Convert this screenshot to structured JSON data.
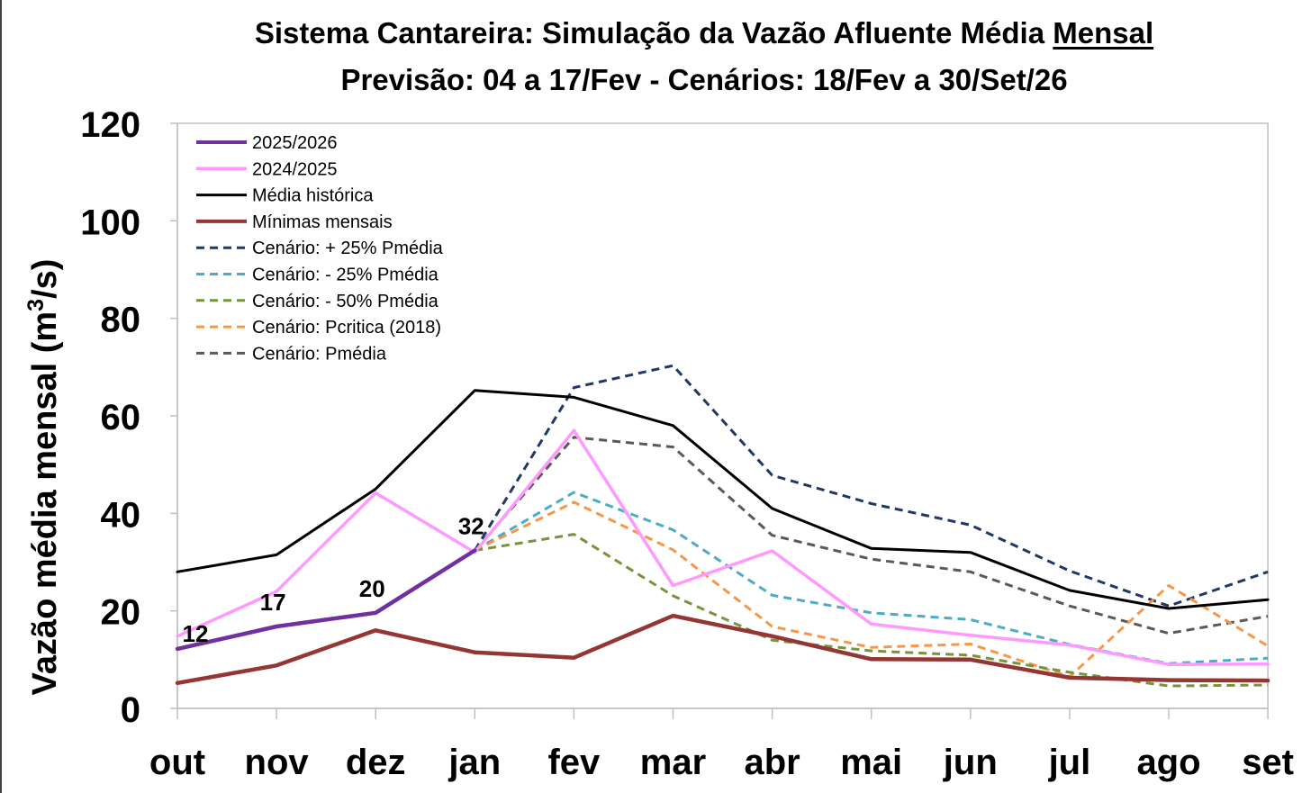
{
  "chart_data": {
    "type": "line",
    "title_main": "Sistema Cantareira: Simulação da Vazão Afluente Média",
    "title_emphasis": "Mensal",
    "subtitle": "Previsão: 04 a 17/Fev - Cenários: 18/Fev a 30/Set/26",
    "ylabel": "Vazão média mensal (m3/s)",
    "ylabel_base": "Vazão média mensal (m",
    "ylabel_sup": "3",
    "ylabel_end": "/s)",
    "categories": [
      "out",
      "nov",
      "dez",
      "jan",
      "fev",
      "mar",
      "abr",
      "mai",
      "jun",
      "jul",
      "ago",
      "set"
    ],
    "ylim": [
      0,
      120
    ],
    "yticks": [
      "0",
      "20",
      "40",
      "60",
      "80",
      "100",
      "120"
    ],
    "grid": false,
    "legend_position": "top-left",
    "series": [
      {
        "name": "2025/2026",
        "color": "#7030a0",
        "dash": "solid",
        "width": 4.5,
        "values": [
          12.2,
          16.8,
          19.6,
          32.4,
          null,
          null,
          null,
          null,
          null,
          null,
          null,
          null
        ]
      },
      {
        "name": "2024/2025",
        "color": "#ff99ff",
        "dash": "solid",
        "width": 3.5,
        "values": [
          14.8,
          24.0,
          44.2,
          32.0,
          57.0,
          25.2,
          32.3,
          17.3,
          15.0,
          13.0,
          9.0,
          9.1
        ]
      },
      {
        "name": "Média histórica",
        "color": "#000000",
        "dash": "solid",
        "width": 3,
        "values": [
          28.0,
          31.5,
          45.0,
          65.2,
          63.8,
          58.0,
          41.0,
          32.8,
          32.0,
          24.2,
          20.5,
          22.3
        ]
      },
      {
        "name": "Mínimas mensais",
        "color": "#943634",
        "dash": "solid",
        "width": 4.5,
        "values": [
          5.2,
          8.8,
          16.0,
          11.5,
          10.4,
          19.0,
          14.8,
          10.1,
          10.0,
          6.3,
          5.8,
          5.7
        ]
      },
      {
        "name": "Cenário: + 25% Pmédia",
        "color": "#1f3864",
        "dash": "dashed",
        "width": 3,
        "values": [
          null,
          null,
          null,
          32.4,
          65.8,
          70.3,
          47.8,
          42.0,
          37.6,
          28.2,
          21.0,
          28.0
        ]
      },
      {
        "name": "Cenário: - 25% Pmédia",
        "color": "#4bacc6",
        "dash": "dashed",
        "width": 3,
        "values": [
          null,
          null,
          null,
          32.4,
          44.3,
          36.6,
          23.2,
          19.6,
          18.2,
          13.1,
          9.2,
          10.3
        ]
      },
      {
        "name": "Cenário: - 50% Pmédia",
        "color": "#77933c",
        "dash": "dashed",
        "width": 3,
        "values": [
          null,
          null,
          null,
          32.4,
          35.7,
          23.1,
          14.0,
          11.8,
          10.9,
          7.4,
          4.6,
          4.8
        ]
      },
      {
        "name": "Cenário: Pcritica (2018)",
        "color": "#f79646",
        "dash": "dashed",
        "width": 3,
        "values": [
          null,
          null,
          null,
          32.4,
          42.3,
          32.5,
          16.8,
          12.5,
          13.2,
          6.5,
          25.2,
          12.8
        ]
      },
      {
        "name": "Cenário: Pmédia",
        "color": "#595959",
        "dash": "dashed",
        "width": 3,
        "values": [
          null,
          null,
          null,
          32.4,
          55.6,
          53.6,
          35.5,
          30.6,
          28.0,
          21.0,
          15.4,
          18.9
        ]
      }
    ],
    "annotations": [
      {
        "category": "out",
        "value": 12.2,
        "label": "12"
      },
      {
        "category": "nov",
        "value": 16.8,
        "label": "17"
      },
      {
        "category": "dez",
        "value": 19.6,
        "label": "20"
      },
      {
        "category": "jan",
        "value": 32.4,
        "label": "32"
      }
    ]
  }
}
